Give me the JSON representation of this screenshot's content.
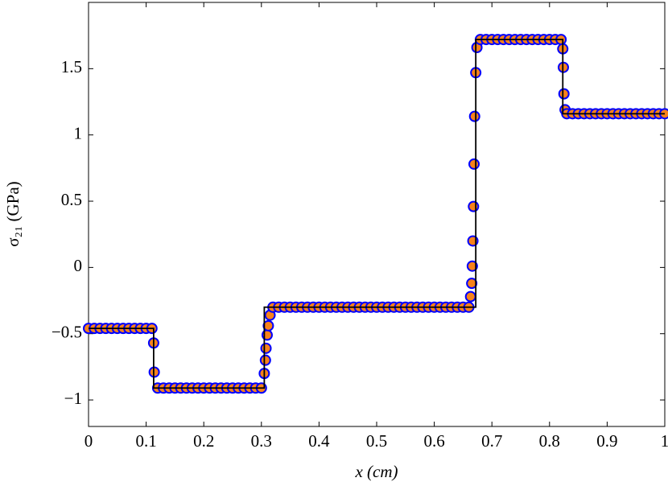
{
  "chart_data": {
    "type": "line",
    "xlabel": "x (cm)",
    "ylabel": "σ₂₁ (GPa)",
    "xlim": [
      0,
      1
    ],
    "ylim": [
      -1.2,
      2.0
    ],
    "xticks": [
      0,
      0.1,
      0.2,
      0.3,
      0.4,
      0.5,
      0.6,
      0.7,
      0.8,
      0.9,
      1
    ],
    "yticks": [
      {
        "value": -1,
        "label": "−1"
      },
      {
        "value": -0.5,
        "label": "−0.5"
      },
      0,
      0.5,
      1,
      1.5
    ],
    "grid": false,
    "series": [
      {
        "type": "scatter",
        "color": "#f7821b",
        "edgecolor": "#0000ff",
        "x": [
          0,
          0.01,
          0.02,
          0.03,
          0.04,
          0.05,
          0.06,
          0.07,
          0.08,
          0.09,
          0.1,
          0.11,
          0.113,
          0.114,
          0.12,
          0.13,
          0.14,
          0.15,
          0.16,
          0.17,
          0.18,
          0.19,
          0.2,
          0.21,
          0.22,
          0.23,
          0.24,
          0.25,
          0.26,
          0.27,
          0.28,
          0.29,
          0.3,
          0.305,
          0.307,
          0.308,
          0.31,
          0.312,
          0.315,
          0.32,
          0.33,
          0.34,
          0.35,
          0.36,
          0.37,
          0.38,
          0.39,
          0.4,
          0.41,
          0.42,
          0.43,
          0.44,
          0.45,
          0.46,
          0.47,
          0.48,
          0.49,
          0.5,
          0.51,
          0.52,
          0.53,
          0.54,
          0.55,
          0.56,
          0.57,
          0.58,
          0.59,
          0.6,
          0.61,
          0.62,
          0.63,
          0.64,
          0.65,
          0.66,
          0.663,
          0.665,
          0.666,
          0.667,
          0.668,
          0.669,
          0.67,
          0.672,
          0.674,
          0.68,
          0.69,
          0.7,
          0.71,
          0.72,
          0.73,
          0.74,
          0.75,
          0.76,
          0.77,
          0.78,
          0.79,
          0.8,
          0.81,
          0.82,
          0.823,
          0.824,
          0.825,
          0.827,
          0.83,
          0.84,
          0.85,
          0.86,
          0.87,
          0.88,
          0.89,
          0.9,
          0.91,
          0.92,
          0.93,
          0.94,
          0.95,
          0.96,
          0.97,
          0.98,
          0.99,
          1
        ],
        "values": [
          -0.46,
          -0.46,
          -0.46,
          -0.46,
          -0.46,
          -0.46,
          -0.46,
          -0.46,
          -0.46,
          -0.46,
          -0.46,
          -0.46,
          -0.57,
          -0.79,
          -0.91,
          -0.91,
          -0.91,
          -0.91,
          -0.91,
          -0.91,
          -0.91,
          -0.91,
          -0.91,
          -0.91,
          -0.91,
          -0.91,
          -0.91,
          -0.91,
          -0.91,
          -0.91,
          -0.91,
          -0.91,
          -0.91,
          -0.8,
          -0.7,
          -0.61,
          -0.51,
          -0.44,
          -0.36,
          -0.3,
          -0.3,
          -0.3,
          -0.3,
          -0.3,
          -0.3,
          -0.3,
          -0.3,
          -0.3,
          -0.3,
          -0.3,
          -0.3,
          -0.3,
          -0.3,
          -0.3,
          -0.3,
          -0.3,
          -0.3,
          -0.3,
          -0.3,
          -0.3,
          -0.3,
          -0.3,
          -0.3,
          -0.3,
          -0.3,
          -0.3,
          -0.3,
          -0.3,
          -0.3,
          -0.3,
          -0.3,
          -0.3,
          -0.3,
          -0.3,
          -0.22,
          -0.12,
          0.01,
          0.2,
          0.46,
          0.78,
          1.14,
          1.47,
          1.66,
          1.72,
          1.72,
          1.72,
          1.72,
          1.72,
          1.72,
          1.72,
          1.72,
          1.72,
          1.72,
          1.72,
          1.72,
          1.72,
          1.72,
          1.72,
          1.65,
          1.51,
          1.31,
          1.19,
          1.16,
          1.16,
          1.16,
          1.16,
          1.16,
          1.16,
          1.16,
          1.16,
          1.16,
          1.16,
          1.16,
          1.16,
          1.16,
          1.16,
          1.16,
          1.16,
          1.16,
          1.16
        ]
      },
      {
        "type": "line",
        "color": "#000000",
        "x": [
          0,
          0.113,
          0.113,
          0.305,
          0.305,
          0.672,
          0.672,
          0.823,
          0.823,
          1
        ],
        "values": [
          -0.46,
          -0.46,
          -0.91,
          -0.91,
          -0.3,
          -0.3,
          1.72,
          1.72,
          1.16,
          1.16
        ]
      }
    ]
  }
}
